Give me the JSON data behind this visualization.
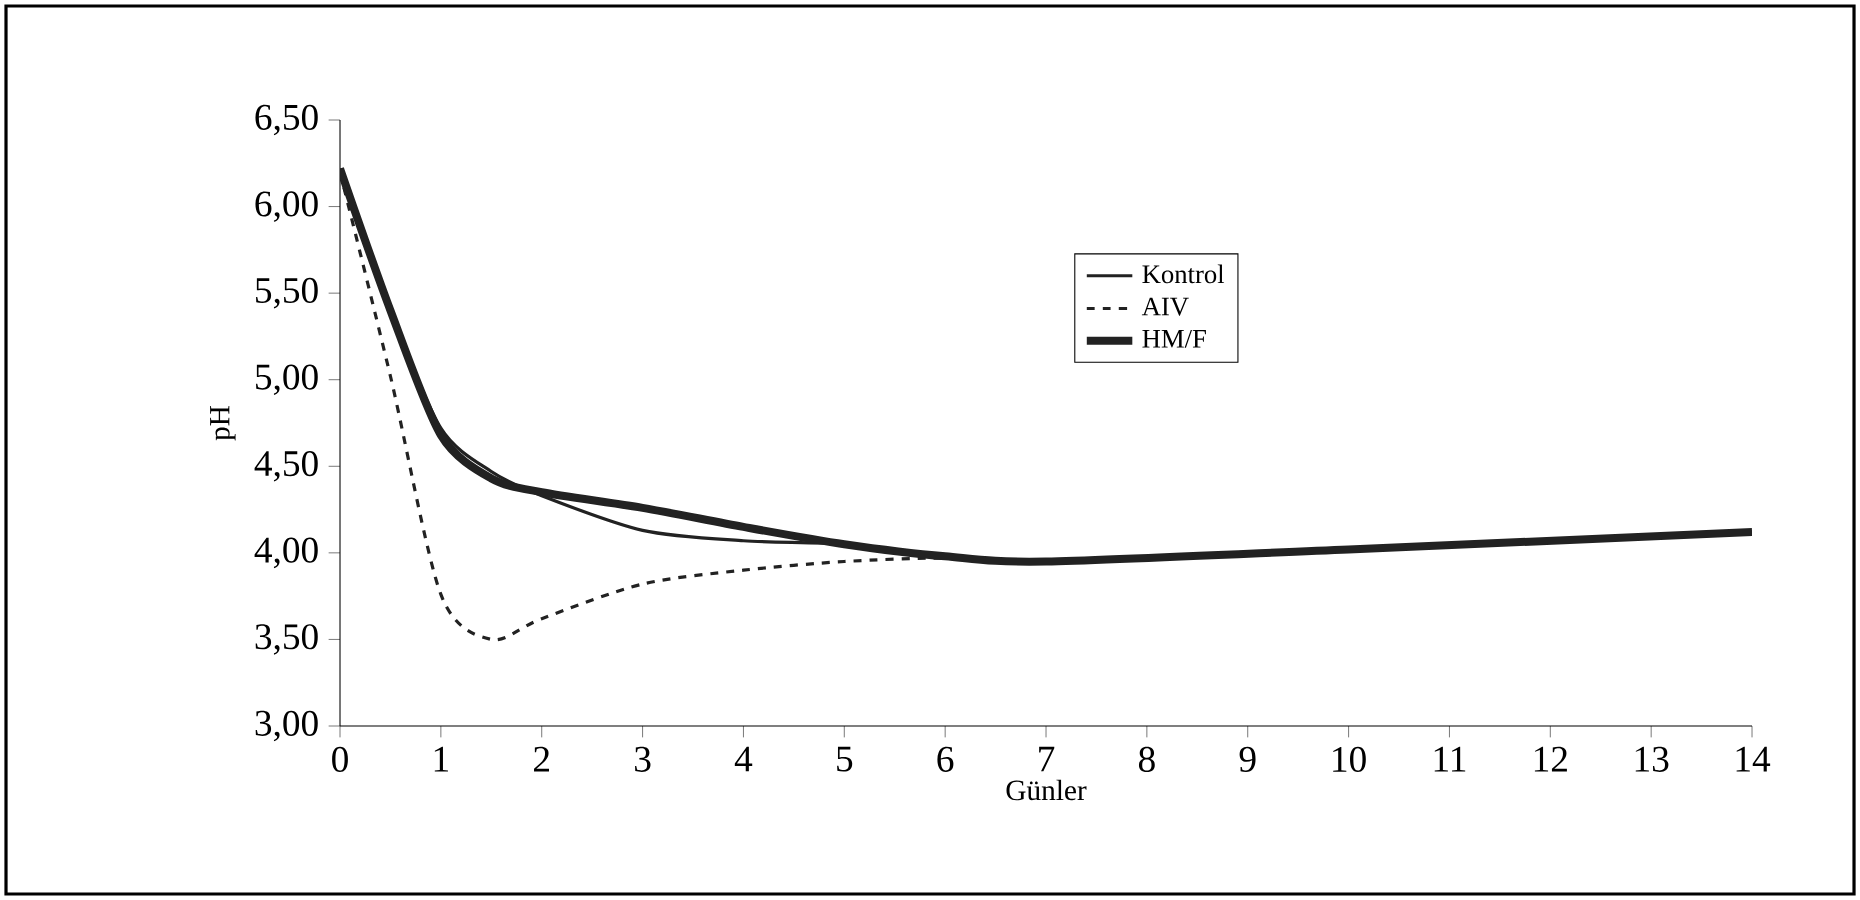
{
  "chart_data": {
    "type": "line",
    "xlabel": "Günler",
    "ylabel": "pH",
    "xlim": [
      0,
      14
    ],
    "ylim": [
      3,
      6.5
    ],
    "xticks": [
      0,
      1,
      2,
      3,
      4,
      5,
      6,
      7,
      8,
      9,
      10,
      11,
      12,
      13,
      14
    ],
    "yticks": [
      {
        "value": 3,
        "label": "3,00"
      },
      {
        "value": 3.5,
        "label": "3,50"
      },
      {
        "value": 4,
        "label": "4,00"
      },
      {
        "value": 4.5,
        "label": "4,50"
      },
      {
        "value": 5,
        "label": "5,00"
      },
      {
        "value": 5.5,
        "label": "5,50"
      },
      {
        "value": 6,
        "label": "6,00"
      },
      {
        "value": 6.5,
        "label": "6,50"
      }
    ],
    "grid": false,
    "legend": "top right",
    "marker": "none",
    "series": [
      {
        "name": "Kontrol",
        "color": "#222222",
        "line_style": "solid",
        "x": [
          0,
          0.5,
          1,
          1.5,
          2,
          3,
          4,
          5,
          6,
          7,
          10,
          14
        ],
        "values": [
          6.22,
          5.4,
          4.72,
          4.47,
          4.33,
          4.13,
          4.07,
          4.05,
          3.98,
          3.95,
          4.02,
          4.12
        ]
      },
      {
        "name": "AIV",
        "color": "#222222",
        "line_style": "dashed",
        "x": [
          0,
          0.5,
          1,
          1.5,
          2,
          3,
          4,
          5,
          6,
          7,
          10,
          14
        ],
        "values": [
          6.2,
          5.02,
          3.76,
          3.5,
          3.62,
          3.82,
          3.9,
          3.95,
          3.97,
          3.95,
          4.02,
          4.12
        ]
      },
      {
        "name": "HM/F",
        "color": "#222222",
        "line_style": "solid",
        "x": [
          0,
          0.5,
          1,
          1.5,
          2,
          3,
          4,
          5,
          6,
          7,
          10,
          14
        ],
        "values": [
          6.22,
          5.4,
          4.68,
          4.43,
          4.35,
          4.26,
          4.15,
          4.05,
          3.98,
          3.95,
          4.02,
          4.12
        ]
      }
    ]
  }
}
